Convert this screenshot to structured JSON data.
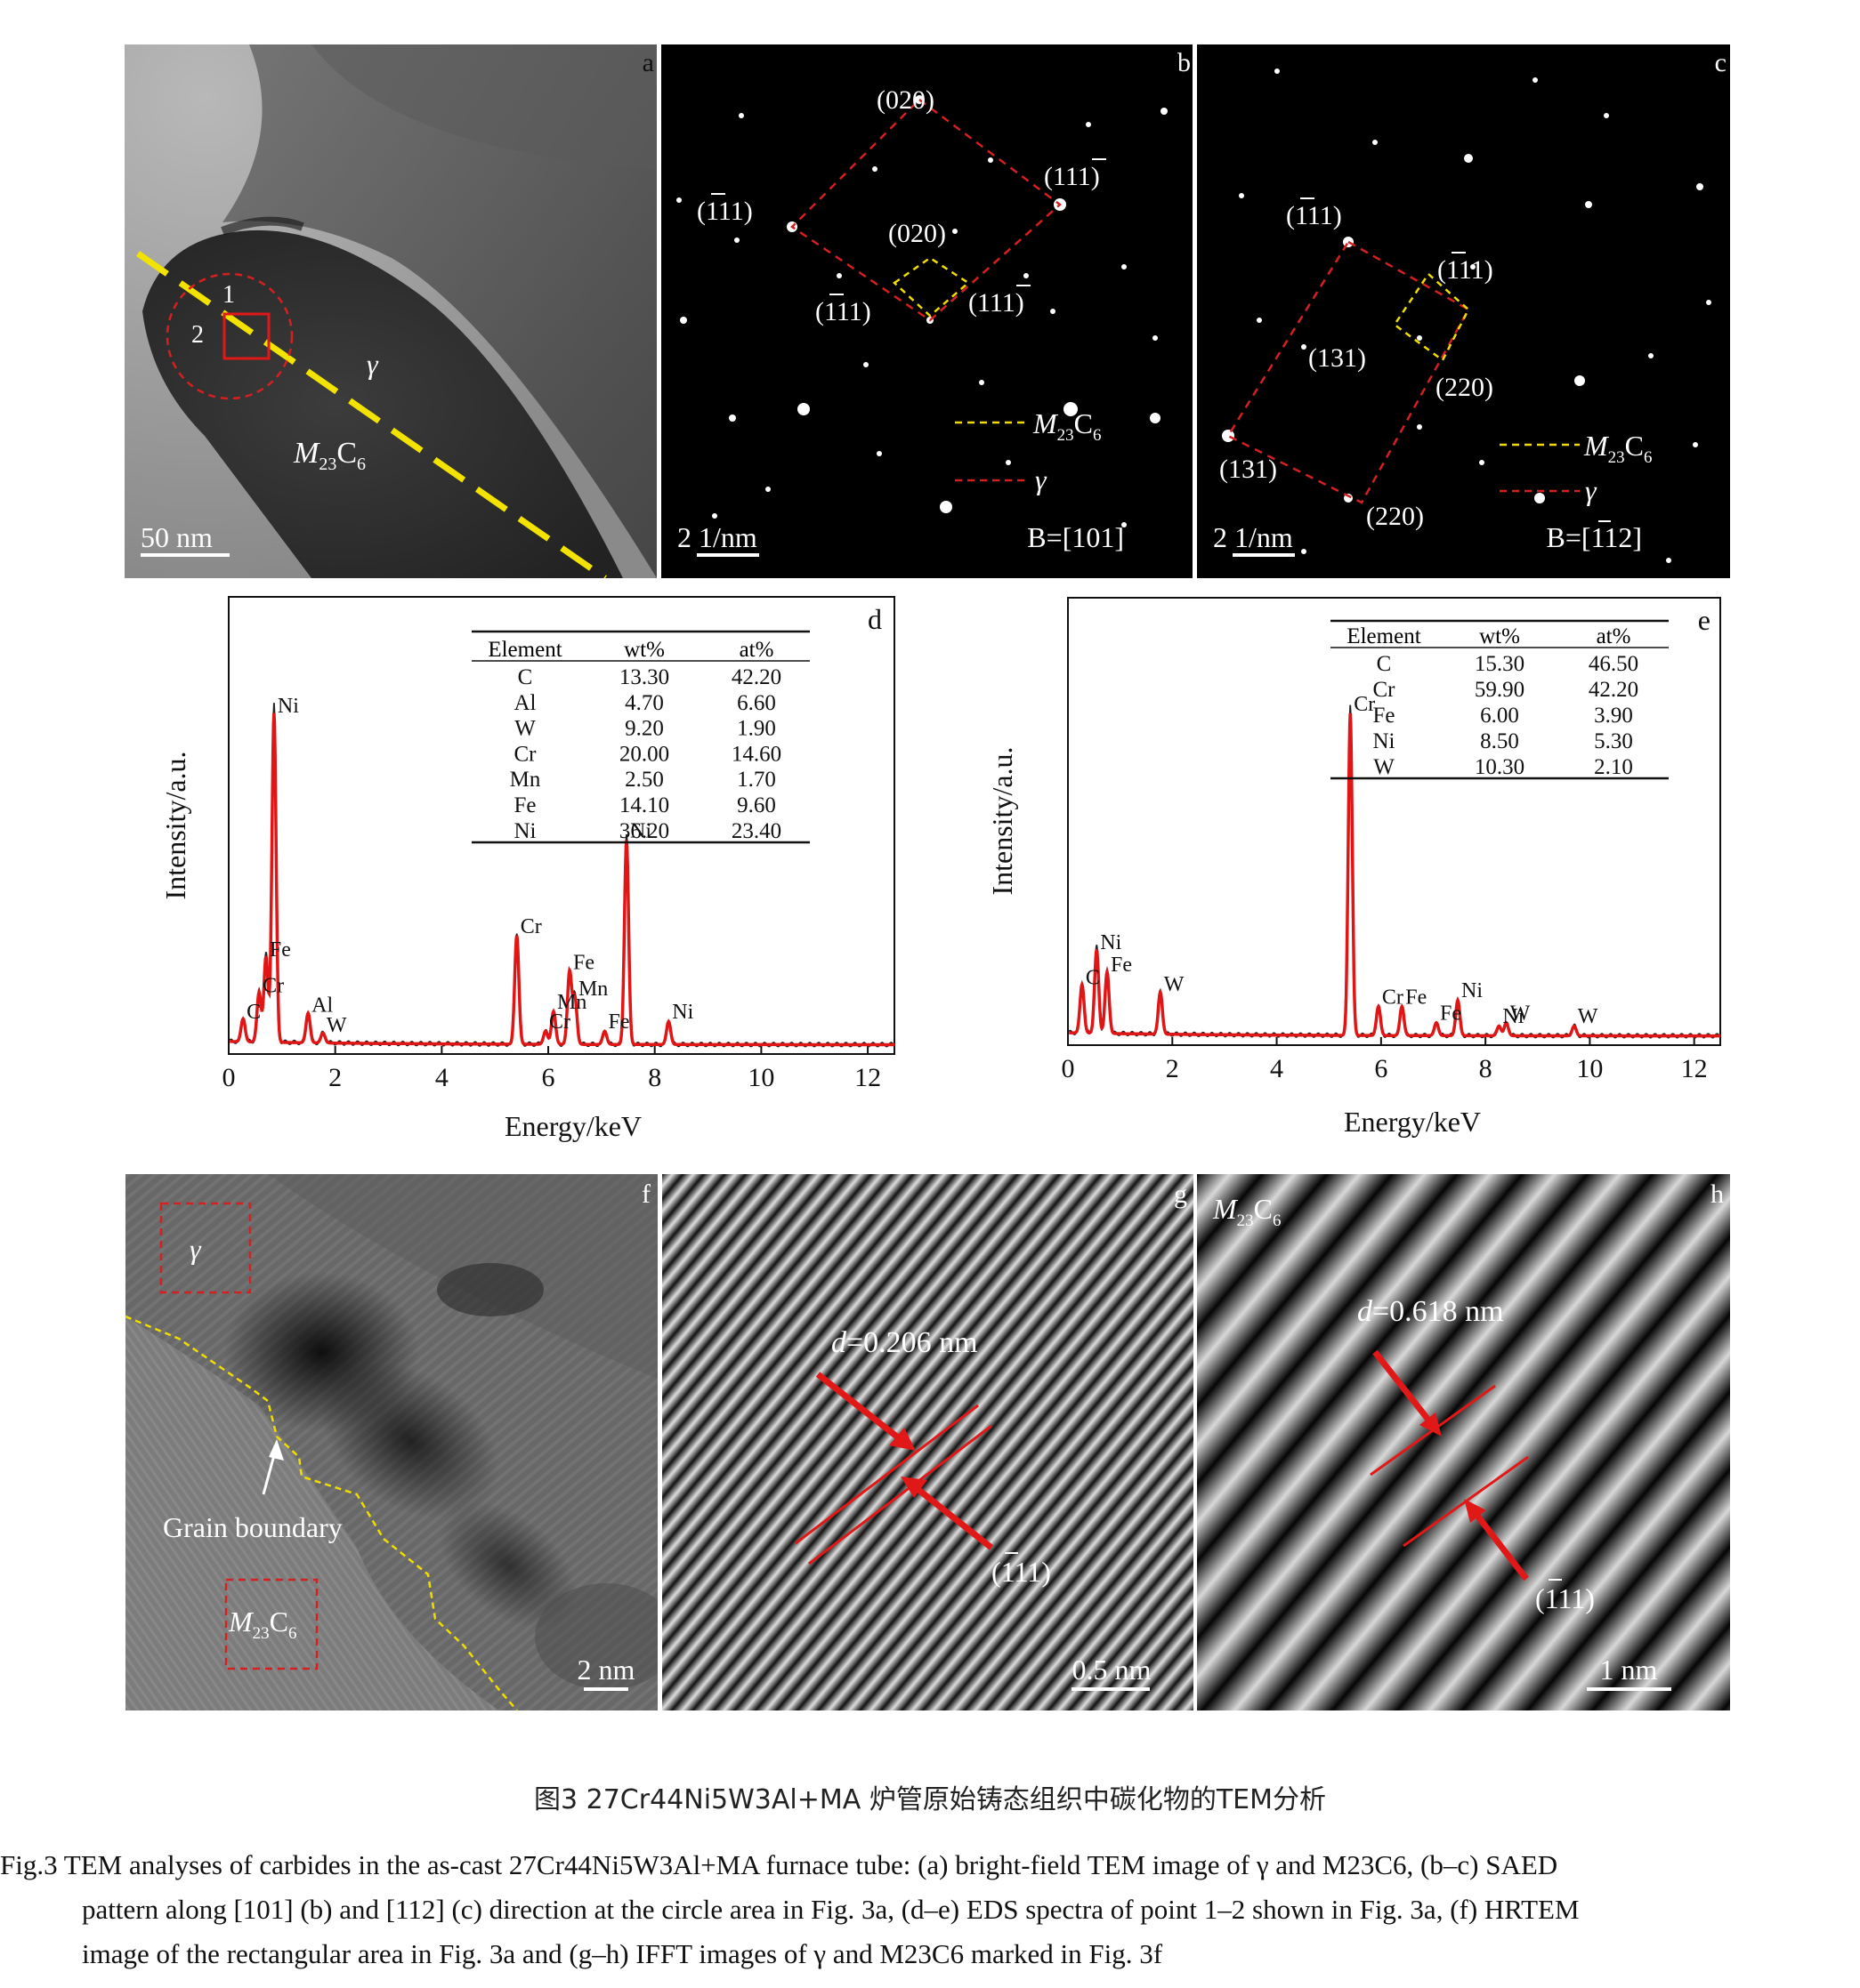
{
  "panel_a": {
    "letter": "a",
    "label_1": "1",
    "label_2": "2",
    "gamma": "γ",
    "carbide_M": "M",
    "carbide_sub23": "23",
    "carbide_C": "C",
    "carbide_sub6": "6",
    "scale_bar": "50 nm"
  },
  "panel_b": {
    "letter": "b",
    "spot_020_outer": "(020)",
    "spot_11m1_outer": "(111)",
    "spot_m111_outer": "(111)",
    "spot_020_inner": "(020)",
    "spot_m111_inner": "(111)",
    "spot_11m1_inner": "(111)",
    "legend_M": "M",
    "legend_sub23": "23",
    "legend_C": "C",
    "legend_sub6": "6",
    "legend_gamma": "γ",
    "scale_bar": "2 1/nm",
    "zone_axis": "B=[101]"
  },
  "panel_c": {
    "letter": "c",
    "spot_m111_outer": "(111)",
    "spot_m111_inner": "(111)",
    "spot_131_inner": "(131)",
    "spot_220_inner": "(220)",
    "spot_131_outer": "(131)",
    "spot_220_outer": "(220)",
    "legend_M": "M",
    "legend_sub23": "23",
    "legend_C": "C",
    "legend_sub6": "6",
    "legend_gamma": "γ",
    "scale_bar": "2 1/nm",
    "zone_axis": "B=[112]"
  },
  "panel_d": {
    "letter": "d",
    "ylabel": "Intensity/a.u.",
    "xlabel": "Energy/keV",
    "table_headers": [
      "Element",
      "wt%",
      "at%"
    ],
    "table_rows": [
      [
        "C",
        "13.30",
        "42.20"
      ],
      [
        "Al",
        "4.70",
        "6.60"
      ],
      [
        "W",
        "9.20",
        "1.90"
      ],
      [
        "Cr",
        "20.00",
        "14.60"
      ],
      [
        "Mn",
        "2.50",
        "1.70"
      ],
      [
        "Fe",
        "14.10",
        "9.60"
      ],
      [
        "Ni",
        "36.20",
        "23.40"
      ]
    ]
  },
  "panel_e": {
    "letter": "e",
    "ylabel": "Intensity/a.u.",
    "xlabel": "Energy/keV",
    "table_headers": [
      "Element",
      "wt%",
      "at%"
    ],
    "table_rows": [
      [
        "C",
        "15.30",
        "46.50"
      ],
      [
        "Cr",
        "59.90",
        "42.20"
      ],
      [
        "Fe",
        "6.00",
        "3.90"
      ],
      [
        "Ni",
        "8.50",
        "5.30"
      ],
      [
        "W",
        "10.30",
        "2.10"
      ]
    ]
  },
  "panel_f": {
    "letter": "f",
    "gamma": "γ",
    "grain_boundary": "Grain boundary",
    "carbide_M": "M",
    "carbide_sub23": "23",
    "carbide_C": "C",
    "carbide_sub6": "6",
    "scale_bar": "2 nm"
  },
  "panel_g": {
    "letter": "g",
    "d_label": "d",
    "d_value": "=0.206 nm",
    "plane": "(111)",
    "scale_bar": "0.5 nm"
  },
  "panel_h": {
    "letter": "h",
    "carbide_M": "M",
    "carbide_sub23": "23",
    "carbide_C": "C",
    "carbide_sub6": "6",
    "d_label": "d",
    "d_value": "=0.618 nm",
    "plane": "(111)",
    "scale_bar": "1 nm"
  },
  "caption": {
    "cn": "图3  27Cr44Ni5W3Al+MA 炉管原始铸态组织中碳化物的TEM分析",
    "en_line1": "Fig.3  TEM analyses of carbides in the as-cast 27Cr44Ni5W3Al+MA furnace tube: (a) bright-field TEM image of γ and M23C6, (b–c) SAED",
    "en_line2": "pattern along [101] (b) and [112] (c) direction at the circle area in Fig. 3a, (d–e) EDS spectra of point 1–2 shown in Fig. 3a, (f) HRTEM",
    "en_line3": "image of the rectangular area in Fig. 3a and (g–h) IFFT images of γ and M23C6 marked in Fig. 3f"
  },
  "chart_data": [
    {
      "type": "line",
      "panel": "d",
      "xlabel": "Energy/keV",
      "ylabel": "Intensity/a.u.",
      "xlim": [
        0,
        12.5
      ],
      "xticks": [
        0,
        2,
        4,
        6,
        8,
        10,
        12
      ],
      "peaks": [
        {
          "label": "C",
          "x": 0.27,
          "y": 0.07
        },
        {
          "label": "Cr",
          "x": 0.57,
          "y": 0.15
        },
        {
          "label": "Fe",
          "x": 0.7,
          "y": 0.26
        },
        {
          "label": "Ni",
          "x": 0.85,
          "y": 1.0
        },
        {
          "label": "Al",
          "x": 1.49,
          "y": 0.09
        },
        {
          "label": "W",
          "x": 1.77,
          "y": 0.03
        },
        {
          "label": "Cr",
          "x": 5.41,
          "y": 0.33
        },
        {
          "label": "Cr",
          "x": 5.95,
          "y": 0.04
        },
        {
          "label": "Mn",
          "x": 6.1,
          "y": 0.1
        },
        {
          "label": "Fe",
          "x": 6.4,
          "y": 0.22
        },
        {
          "label": "Mn",
          "x": 6.5,
          "y": 0.14
        },
        {
          "label": "Fe",
          "x": 7.06,
          "y": 0.04
        },
        {
          "label": "Ni",
          "x": 7.47,
          "y": 0.62
        },
        {
          "label": "Ni",
          "x": 8.26,
          "y": 0.07
        }
      ]
    },
    {
      "type": "line",
      "panel": "e",
      "xlabel": "Energy/keV",
      "ylabel": "Intensity/a.u.",
      "xlim": [
        0,
        12.5
      ],
      "xticks": [
        0,
        2,
        4,
        6,
        8,
        10,
        12
      ],
      "peaks": [
        {
          "label": "C",
          "x": 0.27,
          "y": 0.15
        },
        {
          "label": "Ni",
          "x": 0.55,
          "y": 0.26
        },
        {
          "label": "Fe",
          "x": 0.75,
          "y": 0.19
        },
        {
          "label": "W",
          "x": 1.77,
          "y": 0.13
        },
        {
          "label": "Cr",
          "x": 5.41,
          "y": 1.0
        },
        {
          "label": "Cr",
          "x": 5.95,
          "y": 0.09
        },
        {
          "label": "Fe",
          "x": 6.4,
          "y": 0.09
        },
        {
          "label": "Fe",
          "x": 7.06,
          "y": 0.04
        },
        {
          "label": "Ni",
          "x": 7.47,
          "y": 0.11
        },
        {
          "label": "W",
          "x": 8.4,
          "y": 0.04
        },
        {
          "label": "Ni",
          "x": 8.26,
          "y": 0.03
        },
        {
          "label": "W",
          "x": 9.7,
          "y": 0.03
        }
      ]
    }
  ]
}
